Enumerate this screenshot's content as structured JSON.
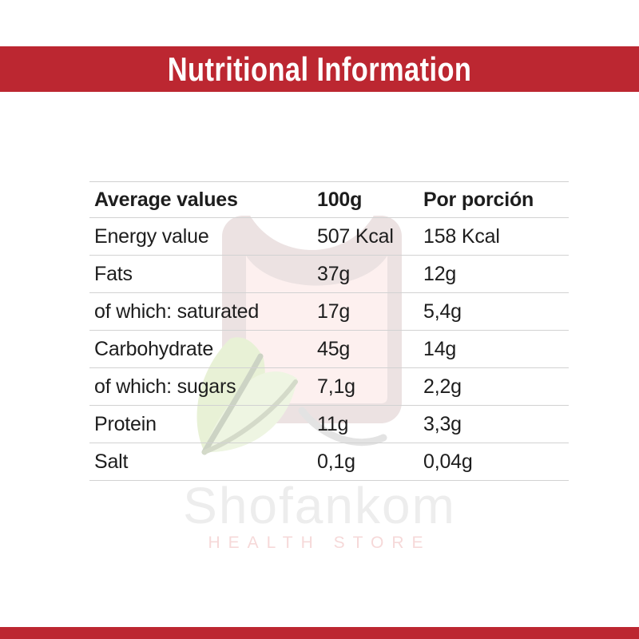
{
  "banner": {
    "title": "Nutritional Information",
    "background_color": "#bc2731",
    "text_color": "#ffffff"
  },
  "table": {
    "columns": [
      "Average values",
      "100g",
      "Por porción"
    ],
    "rows": [
      [
        "Energy value",
        "507 Kcal",
        "158 Kcal"
      ],
      [
        "Fats",
        "37g",
        "12g"
      ],
      [
        "of which: saturated",
        "17g",
        "5,4g"
      ],
      [
        "Carbohydrate",
        "45g",
        "14g"
      ],
      [
        "of which: sugars",
        "7,1g",
        "2,2g"
      ],
      [
        "Protein",
        "11g",
        "3,3g"
      ],
      [
        "Salt",
        "0,1g",
        "0,04g"
      ]
    ],
    "line_color": "#d2d2d2",
    "text_color": "#1d1d1d"
  },
  "watermark": {
    "brand": "Shofankom",
    "tagline": "HEALTH STORE",
    "brand_color": "#ededed",
    "tagline_color": "#f6d9d9",
    "logo_colors": {
      "bag": "#ece2e2",
      "panel": "#fdf0ef",
      "leaf_light": "#eef5e2",
      "leaf": "#e8f1d6",
      "stem": "#ccd3c4"
    }
  },
  "footer_band": {
    "color": "#bc2731"
  }
}
